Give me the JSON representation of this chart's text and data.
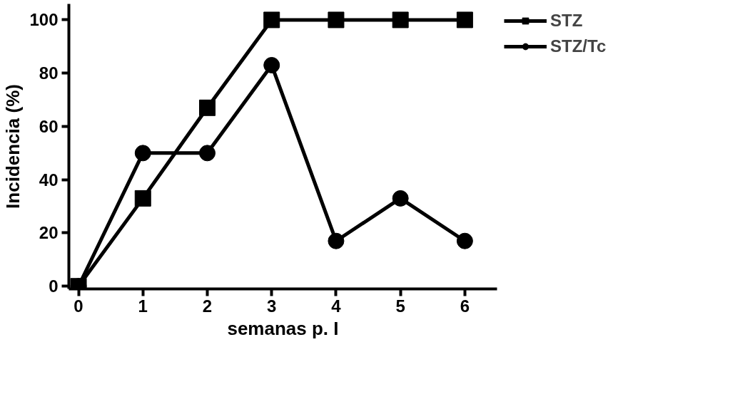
{
  "chart_data": {
    "type": "line",
    "xlabel": "semanas p. I",
    "ylabel": "Incidencia (%)",
    "x": [
      0,
      1,
      2,
      3,
      4,
      5,
      6
    ],
    "series": [
      {
        "name": "STZ",
        "color": "#000000",
        "marker": "square",
        "values": [
          0,
          33,
          67,
          100,
          100,
          100,
          100
        ]
      },
      {
        "name": "STZ/Tc",
        "color": "#000000",
        "marker": "circle",
        "values": [
          0,
          50,
          50,
          83,
          17,
          33,
          17
        ]
      }
    ],
    "xlim": [
      -0.15,
      6.5
    ],
    "ylim": [
      -1,
      106
    ],
    "xticks": [
      0,
      1,
      2,
      3,
      4,
      5,
      6
    ],
    "yticks": [
      0,
      20,
      40,
      60,
      80,
      100
    ],
    "grid": false,
    "legend": "top right",
    "line_style": "solid"
  }
}
